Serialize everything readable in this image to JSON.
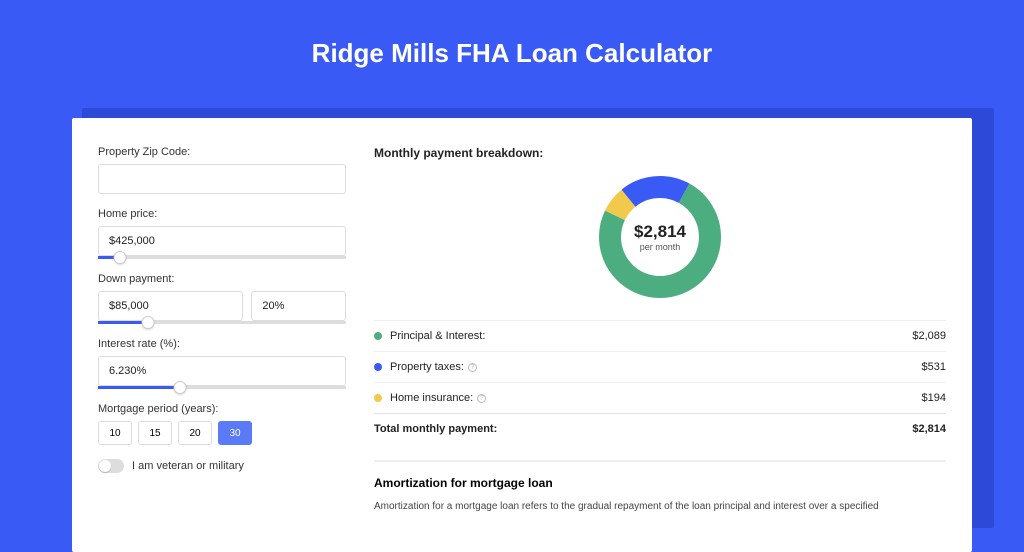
{
  "page": {
    "title": "Ridge Mills FHA Loan Calculator",
    "bg_color": "#3a5af5",
    "panel_shadow_color": "#2d49d8"
  },
  "form": {
    "zip": {
      "label": "Property Zip Code:",
      "value": ""
    },
    "price": {
      "label": "Home price:",
      "value": "$425,000",
      "slider_pct": 9
    },
    "down": {
      "label": "Down payment:",
      "value": "$85,000",
      "pct": "20%",
      "slider_pct": 20
    },
    "rate": {
      "label": "Interest rate (%):",
      "value": "6.230%",
      "slider_pct": 33
    },
    "period": {
      "label": "Mortgage period (years):",
      "options": [
        "10",
        "15",
        "20",
        "30"
      ],
      "active": "30"
    },
    "veteran": {
      "label": "I am veteran or military",
      "on": false
    }
  },
  "breakdown": {
    "header": "Monthly payment breakdown:",
    "center_amount": "$2,814",
    "center_sub": "per month",
    "items": [
      {
        "label": "Principal & Interest:",
        "value": "$2,089",
        "color": "#4cae80",
        "pct": 74,
        "info": false
      },
      {
        "label": "Property taxes:",
        "value": "$531",
        "color": "#3a5af5",
        "pct": 19,
        "info": true
      },
      {
        "label": "Home insurance:",
        "value": "$194",
        "color": "#f1c94d",
        "pct": 7,
        "info": true
      }
    ],
    "total": {
      "label": "Total monthly payment:",
      "value": "$2,814"
    },
    "donut": {
      "stroke_width": 22,
      "radius": 50
    }
  },
  "amortization": {
    "title": "Amortization for mortgage loan",
    "text": "Amortization for a mortgage loan refers to the gradual repayment of the loan principal and interest over a specified"
  }
}
